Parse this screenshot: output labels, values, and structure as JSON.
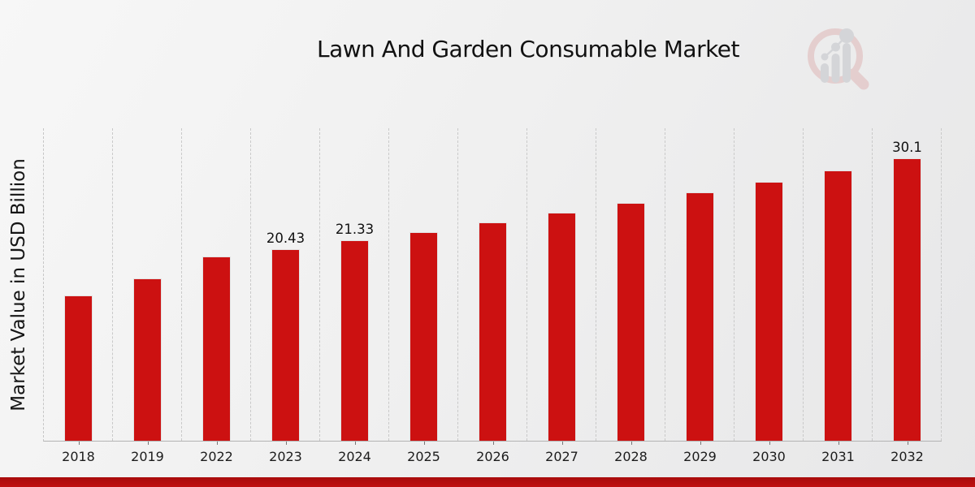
{
  "page": {
    "title": "Lawn And Garden Consumable Market",
    "footer_stripe_color": "#b60f0f",
    "logo_icon": "magnifier-bar-chart-logo"
  },
  "chart_data": {
    "type": "bar",
    "title": "Lawn And Garden Consumable Market",
    "xlabel": "",
    "ylabel": "Market Value in USD Billion",
    "categories": [
      "2018",
      "2019",
      "2022",
      "2023",
      "2024",
      "2025",
      "2026",
      "2027",
      "2028",
      "2029",
      "2030",
      "2031",
      "2032"
    ],
    "values": [
      15.5,
      17.3,
      19.6,
      20.43,
      21.33,
      22.27,
      23.25,
      24.27,
      25.34,
      26.45,
      27.62,
      28.83,
      30.1
    ],
    "bar_labels": [
      "",
      "",
      "",
      "20.43",
      "21.33",
      "",
      "",
      "",
      "",
      "",
      "",
      "",
      "30.1"
    ],
    "bar_color": "#cc1111",
    "bar_edge_color": "#e3e3e3",
    "grid": true,
    "grid_style": "vertical-dashed",
    "gridline_color": "#c9c9c9",
    "legend_position": "none",
    "ylim": [
      0,
      33.3
    ],
    "background": "light-gray-gradient"
  }
}
